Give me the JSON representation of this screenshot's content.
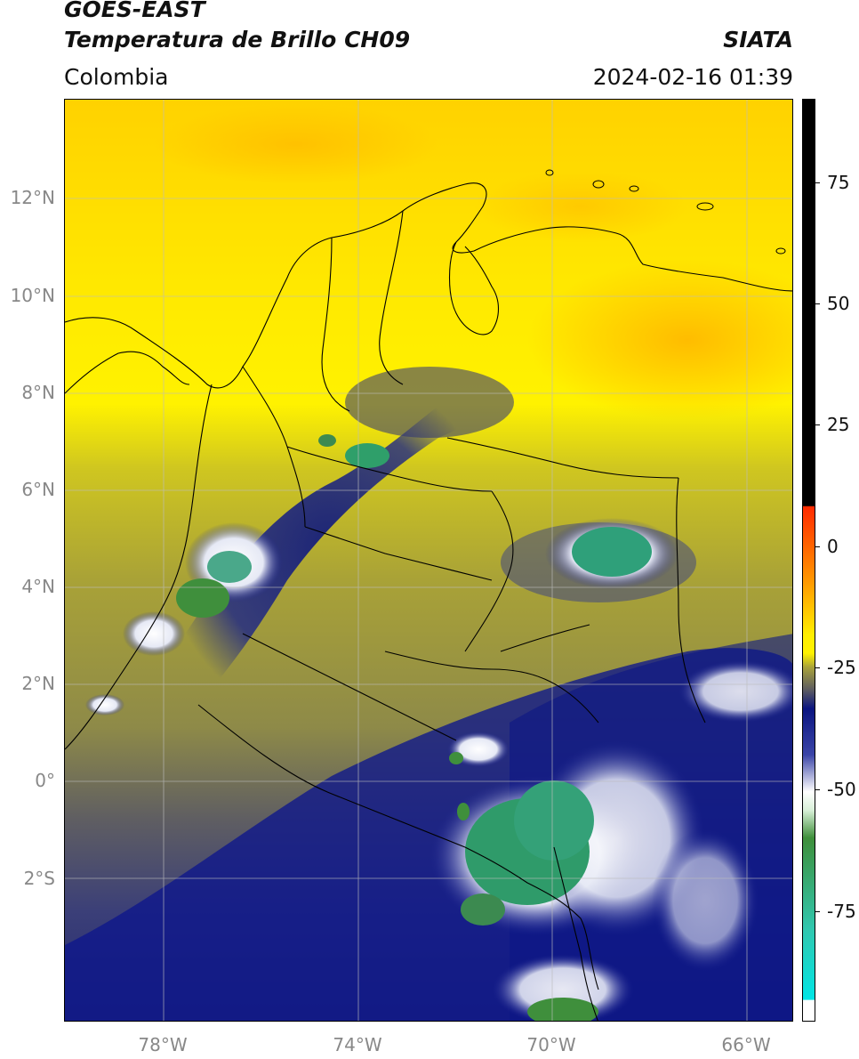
{
  "header": {
    "satellite": "GOES-EAST",
    "product": "Temperatura de Brillo CH09",
    "agency": "SIATA",
    "region": "Colombia",
    "datetime": "2024-02-16 01:39"
  },
  "axes": {
    "lat_labels": [
      "12°N",
      "10°N",
      "8°N",
      "6°N",
      "4°N",
      "2°N",
      "0°",
      "2°S"
    ],
    "lon_labels": [
      "78°W",
      "74°W",
      "70°W",
      "66°W"
    ]
  },
  "colorbar": {
    "ticks": [
      "75",
      "50",
      "25",
      "0",
      "-25",
      "-50",
      "-75"
    ],
    "colors": {
      "black": "#000000",
      "red": "#ff2a00",
      "orange": "#ff9500",
      "yellow": "#ffee00",
      "olive": "#a8a23a",
      "navy": "#0a1480",
      "white": "#ffffff",
      "green": "#3e8f3a",
      "teal": "#30c8b0",
      "cyan": "#00e5e5"
    }
  }
}
